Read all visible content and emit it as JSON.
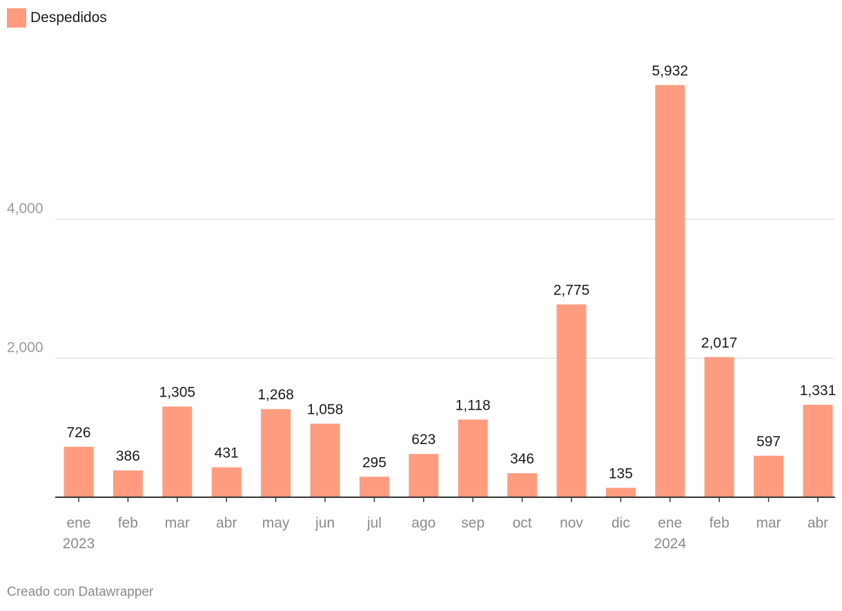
{
  "legend": {
    "label": "Despedidos",
    "color": "#ff9c80"
  },
  "footer": "Creado con Datawrapper",
  "chart_data": {
    "type": "bar",
    "categories": [
      "ene 2023",
      "feb",
      "mar",
      "abr",
      "may",
      "jun",
      "jul",
      "ago",
      "sep",
      "oct",
      "nov",
      "dic",
      "ene 2024",
      "feb",
      "mar",
      "abr"
    ],
    "tick_lines": [
      [
        "ene",
        "2023"
      ],
      [
        "feb"
      ],
      [
        "mar"
      ],
      [
        "abr"
      ],
      [
        "may"
      ],
      [
        "jun"
      ],
      [
        "jul"
      ],
      [
        "ago"
      ],
      [
        "sep"
      ],
      [
        "oct"
      ],
      [
        "nov"
      ],
      [
        "dic"
      ],
      [
        "ene",
        "2024"
      ],
      [
        "feb"
      ],
      [
        "mar"
      ],
      [
        "abr"
      ]
    ],
    "series": [
      {
        "name": "Despedidos",
        "values": [
          726,
          386,
          1305,
          431,
          1268,
          1058,
          295,
          623,
          1118,
          346,
          2775,
          135,
          5932,
          2017,
          597,
          1331
        ],
        "labels": [
          "726",
          "386",
          "1,305",
          "431",
          "1,268",
          "1,058",
          "295",
          "623",
          "1,118",
          "346",
          "2,775",
          "135",
          "5,932",
          "2,017",
          "597",
          "1,331"
        ],
        "color": "#ff9c80"
      }
    ],
    "yticks": [
      2000,
      4000
    ],
    "ytick_labels": [
      "2,000",
      "4,000"
    ],
    "ylim": [
      0,
      6000
    ],
    "grid": true,
    "legend_position": "top-left"
  }
}
